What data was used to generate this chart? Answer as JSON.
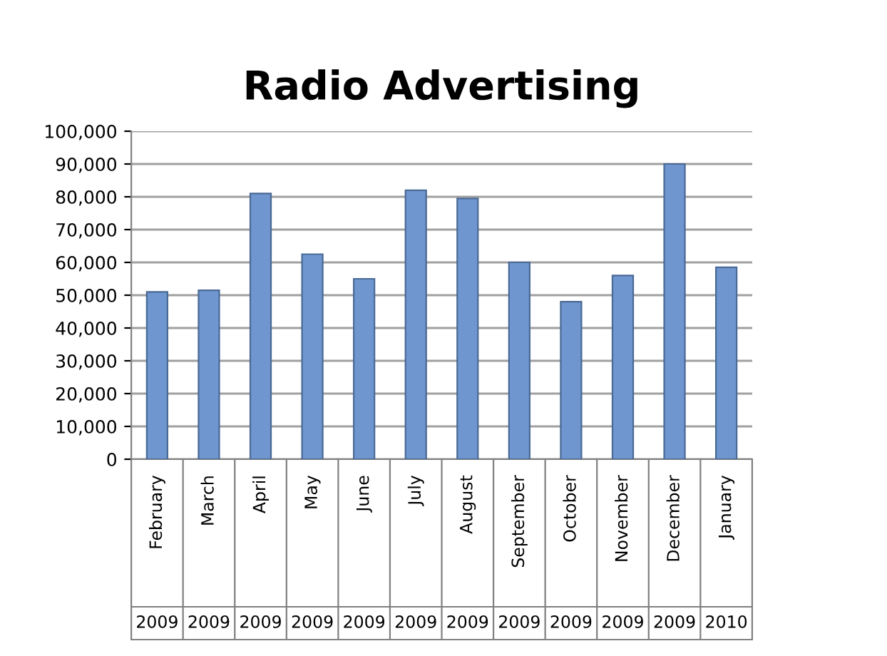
{
  "chart_data": {
    "type": "bar",
    "title": "Radio Advertising",
    "categories": [
      "February",
      "March",
      "April",
      "May",
      "June",
      "July",
      "August",
      "September",
      "October",
      "November",
      "December",
      "January"
    ],
    "values": [
      51000,
      51500,
      81000,
      62500,
      55000,
      82000,
      79500,
      60000,
      48000,
      56000,
      90000,
      58500
    ],
    "color": "#7096cf",
    "ylim": [
      0,
      100000
    ],
    "yticks": [
      {
        "value": 0,
        "label": "0"
      },
      {
        "value": 10000,
        "label": "10,000"
      },
      {
        "value": 20000,
        "label": "20,000"
      },
      {
        "value": 30000,
        "label": "30,000"
      },
      {
        "value": 40000,
        "label": "40,000"
      },
      {
        "value": 50000,
        "label": "50,000"
      },
      {
        "value": 60000,
        "label": "60,000"
      },
      {
        "value": 70000,
        "label": "70,000"
      },
      {
        "value": 80000,
        "label": "80,000"
      },
      {
        "value": 90000,
        "label": "90,000"
      },
      {
        "value": 100000,
        "label": "100,000"
      }
    ],
    "grid": "y",
    "annotations": [
      "2009",
      "2009",
      "2009",
      "2009",
      "2009",
      "2009",
      "2009",
      "2009",
      "2009",
      "2009",
      "2009",
      "2010"
    ]
  }
}
